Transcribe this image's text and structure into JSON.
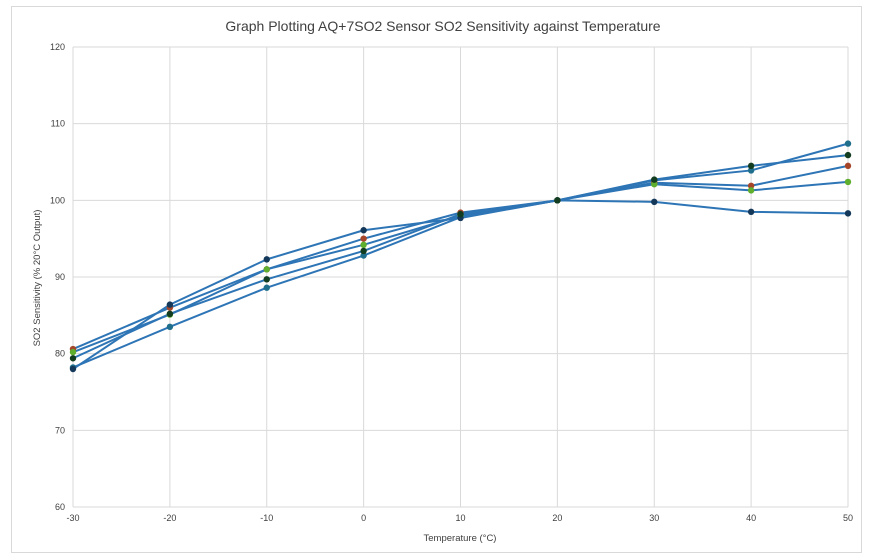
{
  "chart_data": {
    "type": "line",
    "title": "Graph Plotting AQ+7SO2 Sensor SO2 Sensitivity against Temperature",
    "xlabel": "Temperature (°C)",
    "ylabel": "SO2 Sensitivity (% 20°C Output)",
    "x": [
      -30,
      -20,
      -10,
      0,
      10,
      20,
      30,
      40,
      50
    ],
    "xlim": [
      -30,
      50
    ],
    "ylim": [
      60,
      120
    ],
    "xticks": [
      -30,
      -20,
      -10,
      0,
      10,
      20,
      30,
      40,
      50
    ],
    "yticks": [
      60,
      70,
      80,
      90,
      100,
      110,
      120
    ],
    "grid": true,
    "line_color": "#2E75B6",
    "series": [
      {
        "values": [
          78.2,
          83.5,
          88.6,
          92.8,
          97.8,
          100,
          102.6,
          103.9,
          107.4
        ],
        "marker": "#1F6E8C"
      },
      {
        "values": [
          80.6,
          86.0,
          91.0,
          95.0,
          98.4,
          100,
          102.3,
          101.9,
          104.5
        ],
        "marker": "#A5462A"
      },
      {
        "values": [
          80.2,
          85.1,
          91.0,
          94.2,
          98.0,
          100,
          102.1,
          101.3,
          102.4
        ],
        "marker": "#5FAE2E"
      },
      {
        "values": [
          78.0,
          86.4,
          92.3,
          96.1,
          97.7,
          100,
          99.8,
          98.5,
          98.3
        ],
        "marker": "#14385A"
      },
      {
        "values": [
          79.4,
          85.2,
          89.7,
          93.4,
          98.2,
          100,
          102.7,
          104.5,
          105.9
        ],
        "marker": "#123D20"
      }
    ]
  }
}
